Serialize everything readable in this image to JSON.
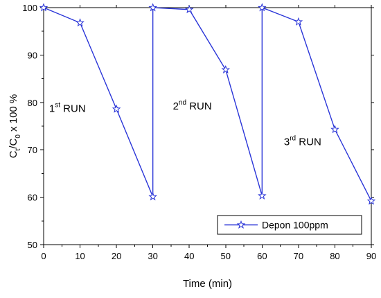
{
  "chart_data": {
    "type": "line",
    "xlabel": "Time (min)",
    "ylabel_parts": [
      "C",
      "t",
      "/C",
      "0",
      " x 100 %"
    ],
    "xlim": [
      0,
      90
    ],
    "ylim": [
      50,
      100
    ],
    "xticks": [
      0,
      10,
      20,
      30,
      40,
      50,
      60,
      70,
      80,
      90
    ],
    "yticks": [
      50,
      60,
      70,
      80,
      90,
      100
    ],
    "grid": false,
    "legend_position": "bottom-right",
    "series": [
      {
        "name": "Depon 100ppm",
        "color": "#2a35d8",
        "marker": "star-open",
        "x": [
          0,
          10,
          20,
          30,
          30,
          40,
          50,
          60,
          60,
          70,
          80,
          90
        ],
        "y": [
          100,
          96.8,
          78.6,
          60.1,
          100,
          99.6,
          86.9,
          60.3,
          100,
          97.0,
          74.3,
          59.2
        ]
      }
    ],
    "annotations": [
      {
        "parts": [
          "1",
          "st",
          " RUN"
        ],
        "x": 1.5,
        "y": 78
      },
      {
        "parts": [
          "2",
          "nd",
          " RUN"
        ],
        "x": 35.5,
        "y": 78.5
      },
      {
        "parts": [
          "3",
          "rd",
          " RUN"
        ],
        "x": 66,
        "y": 71
      }
    ]
  }
}
